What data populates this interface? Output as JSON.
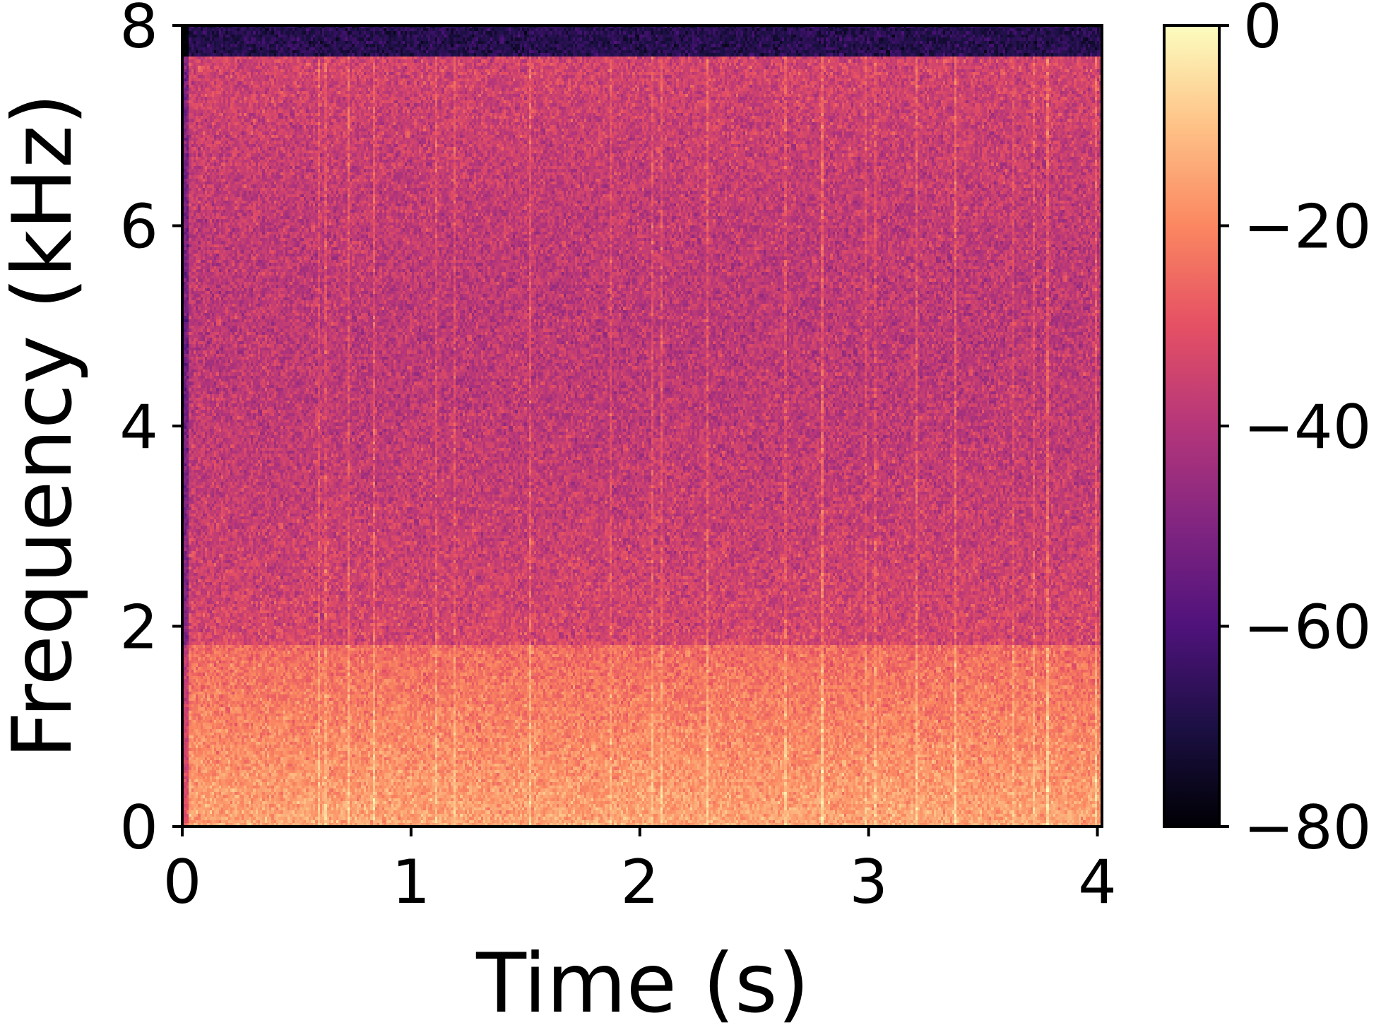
{
  "chart_data": {
    "type": "heatmap",
    "title": "",
    "xlabel": "Time (s)",
    "ylabel": "Frequency (kHz)",
    "xlim": [
      0,
      4.02
    ],
    "ylim": [
      0,
      8
    ],
    "x_ticks": [
      0,
      1,
      2,
      3,
      4
    ],
    "x_tick_labels": [
      "0",
      "1",
      "2",
      "3",
      "4"
    ],
    "y_ticks": [
      0,
      2,
      4,
      6,
      8
    ],
    "y_tick_labels": [
      "0",
      "2",
      "4",
      "6",
      "8"
    ],
    "grid": false,
    "colormap": "magma",
    "colorbar": {
      "range": [
        -80,
        0
      ],
      "ticks": [
        0,
        -20,
        -40,
        -60,
        -80
      ],
      "tick_labels": [
        "0",
        "−20",
        "−40",
        "−60",
        "−80"
      ]
    },
    "features": {
      "upper_band_dark_above_khz": 7.7,
      "bright_low_band_below_khz": 1.8,
      "typical_level_db": [
        -38,
        -28
      ],
      "low_band_level_db": [
        -25,
        -10
      ]
    },
    "colors": {
      "magma_stops": [
        "#000004",
        "#1c1044",
        "#4f127b",
        "#812581",
        "#b5367a",
        "#e55064",
        "#fb8761",
        "#fec287",
        "#fcfdbf"
      ]
    }
  }
}
